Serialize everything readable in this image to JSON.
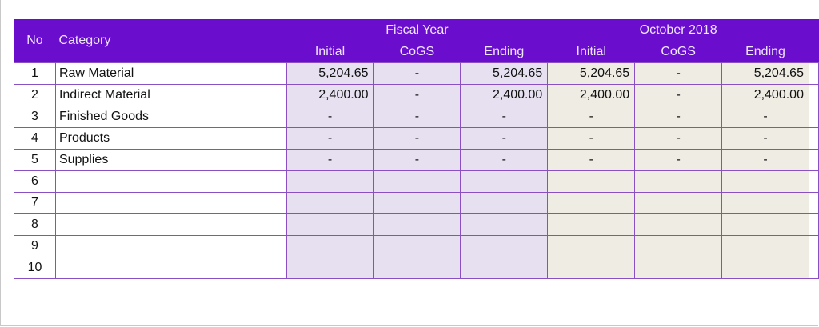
{
  "header": {
    "no": "No",
    "category": "Category",
    "groups": [
      "Fiscal Year",
      "October 2018"
    ],
    "columns": [
      "Initial",
      "CoGS",
      "Ending",
      "Initial",
      "CoGS",
      "Ending"
    ]
  },
  "table": {
    "rows": [
      {
        "no": 1,
        "category": "Raw Material",
        "cells": [
          "5,204.65",
          "-",
          "5,204.65",
          "5,204.65",
          "-",
          "5,204.65"
        ]
      },
      {
        "no": 2,
        "category": "Indirect Material",
        "cells": [
          "2,400.00",
          "-",
          "2,400.00",
          "2,400.00",
          "-",
          "2,400.00"
        ]
      },
      {
        "no": 3,
        "category": "Finished Goods",
        "cells": [
          "-",
          "-",
          "-",
          "-",
          "-",
          "-"
        ]
      },
      {
        "no": 4,
        "category": "Products",
        "cells": [
          "-",
          "-",
          "-",
          "-",
          "-",
          "-"
        ]
      },
      {
        "no": 5,
        "category": "Supplies",
        "cells": [
          "-",
          "-",
          "-",
          "-",
          "-",
          "-"
        ]
      },
      {
        "no": 6
      },
      {
        "no": 7
      },
      {
        "no": 8
      },
      {
        "no": 9
      },
      {
        "no": 10
      }
    ]
  }
}
